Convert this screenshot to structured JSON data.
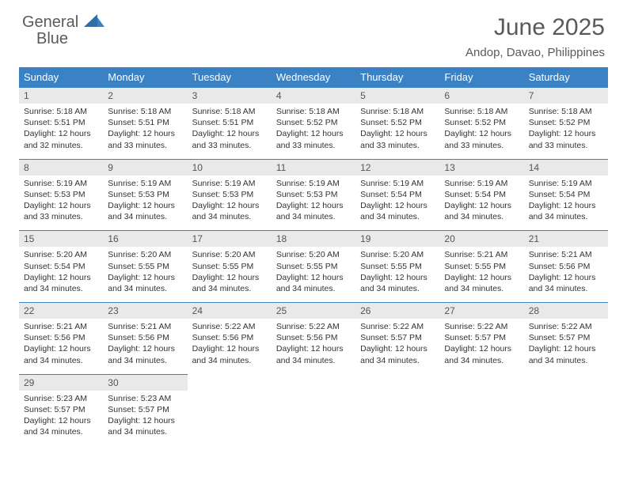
{
  "brand": {
    "word1": "General",
    "word2": "Blue"
  },
  "colors": {
    "header_bg": "#3b82c4",
    "header_text": "#ffffff",
    "daynum_bg": "#e9e9e9",
    "body_text": "#333333",
    "title_text": "#5a5a5a",
    "row_border": "#3b82c4"
  },
  "title": "June 2025",
  "location": "Andop, Davao, Philippines",
  "weekdays": [
    "Sunday",
    "Monday",
    "Tuesday",
    "Wednesday",
    "Thursday",
    "Friday",
    "Saturday"
  ],
  "weeks": [
    [
      {
        "n": "1",
        "sr": "5:18 AM",
        "ss": "5:51 PM",
        "dl": "12 hours and 32 minutes."
      },
      {
        "n": "2",
        "sr": "5:18 AM",
        "ss": "5:51 PM",
        "dl": "12 hours and 33 minutes."
      },
      {
        "n": "3",
        "sr": "5:18 AM",
        "ss": "5:51 PM",
        "dl": "12 hours and 33 minutes."
      },
      {
        "n": "4",
        "sr": "5:18 AM",
        "ss": "5:52 PM",
        "dl": "12 hours and 33 minutes."
      },
      {
        "n": "5",
        "sr": "5:18 AM",
        "ss": "5:52 PM",
        "dl": "12 hours and 33 minutes."
      },
      {
        "n": "6",
        "sr": "5:18 AM",
        "ss": "5:52 PM",
        "dl": "12 hours and 33 minutes."
      },
      {
        "n": "7",
        "sr": "5:18 AM",
        "ss": "5:52 PM",
        "dl": "12 hours and 33 minutes."
      }
    ],
    [
      {
        "n": "8",
        "sr": "5:19 AM",
        "ss": "5:53 PM",
        "dl": "12 hours and 33 minutes."
      },
      {
        "n": "9",
        "sr": "5:19 AM",
        "ss": "5:53 PM",
        "dl": "12 hours and 34 minutes."
      },
      {
        "n": "10",
        "sr": "5:19 AM",
        "ss": "5:53 PM",
        "dl": "12 hours and 34 minutes."
      },
      {
        "n": "11",
        "sr": "5:19 AM",
        "ss": "5:53 PM",
        "dl": "12 hours and 34 minutes."
      },
      {
        "n": "12",
        "sr": "5:19 AM",
        "ss": "5:54 PM",
        "dl": "12 hours and 34 minutes."
      },
      {
        "n": "13",
        "sr": "5:19 AM",
        "ss": "5:54 PM",
        "dl": "12 hours and 34 minutes."
      },
      {
        "n": "14",
        "sr": "5:19 AM",
        "ss": "5:54 PM",
        "dl": "12 hours and 34 minutes."
      }
    ],
    [
      {
        "n": "15",
        "sr": "5:20 AM",
        "ss": "5:54 PM",
        "dl": "12 hours and 34 minutes."
      },
      {
        "n": "16",
        "sr": "5:20 AM",
        "ss": "5:55 PM",
        "dl": "12 hours and 34 minutes."
      },
      {
        "n": "17",
        "sr": "5:20 AM",
        "ss": "5:55 PM",
        "dl": "12 hours and 34 minutes."
      },
      {
        "n": "18",
        "sr": "5:20 AM",
        "ss": "5:55 PM",
        "dl": "12 hours and 34 minutes."
      },
      {
        "n": "19",
        "sr": "5:20 AM",
        "ss": "5:55 PM",
        "dl": "12 hours and 34 minutes."
      },
      {
        "n": "20",
        "sr": "5:21 AM",
        "ss": "5:55 PM",
        "dl": "12 hours and 34 minutes."
      },
      {
        "n": "21",
        "sr": "5:21 AM",
        "ss": "5:56 PM",
        "dl": "12 hours and 34 minutes."
      }
    ],
    [
      {
        "n": "22",
        "sr": "5:21 AM",
        "ss": "5:56 PM",
        "dl": "12 hours and 34 minutes."
      },
      {
        "n": "23",
        "sr": "5:21 AM",
        "ss": "5:56 PM",
        "dl": "12 hours and 34 minutes."
      },
      {
        "n": "24",
        "sr": "5:22 AM",
        "ss": "5:56 PM",
        "dl": "12 hours and 34 minutes."
      },
      {
        "n": "25",
        "sr": "5:22 AM",
        "ss": "5:56 PM",
        "dl": "12 hours and 34 minutes."
      },
      {
        "n": "26",
        "sr": "5:22 AM",
        "ss": "5:57 PM",
        "dl": "12 hours and 34 minutes."
      },
      {
        "n": "27",
        "sr": "5:22 AM",
        "ss": "5:57 PM",
        "dl": "12 hours and 34 minutes."
      },
      {
        "n": "28",
        "sr": "5:22 AM",
        "ss": "5:57 PM",
        "dl": "12 hours and 34 minutes."
      }
    ],
    [
      {
        "n": "29",
        "sr": "5:23 AM",
        "ss": "5:57 PM",
        "dl": "12 hours and 34 minutes."
      },
      {
        "n": "30",
        "sr": "5:23 AM",
        "ss": "5:57 PM",
        "dl": "12 hours and 34 minutes."
      },
      null,
      null,
      null,
      null,
      null
    ]
  ],
  "labels": {
    "sunrise": "Sunrise: ",
    "sunset": "Sunset: ",
    "daylight": "Daylight: "
  }
}
